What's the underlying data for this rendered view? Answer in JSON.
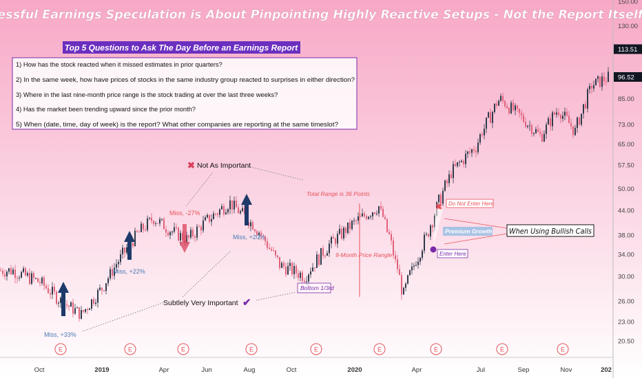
{
  "title": "Successful Earnings Speculation is About Pinpointing Highly Reactive Setups - Not the Report Itself!",
  "questions_box": {
    "heading": "Top 5 Questions to Ask The Day Before an Earnings Report",
    "items": [
      "1)  How has the stock reacted when it missed estimates in prior quarters?",
      "2)  In the same week, how have prices of stocks in the same industry group reacted to surprises in either direction?",
      "3)  Where in the last nine-month price range is the stock trading at over the last three weeks?",
      "4)  Has the market been trending upward since the prior month?",
      "5)   When (date, time, day of week) is the report? What other companies are reporting at the same timeslot?"
    ]
  },
  "annotations": {
    "not_important": "Not As Important",
    "subtly_important": "Subtlely Very Important",
    "miss_27": "Miss, -27%",
    "miss_20": "Miss, +20%",
    "miss_22": "Miss, +22%",
    "miss_33": "Miss, +33%",
    "total_range": "Total Range is 36 Points",
    "nine_month": "9-Month Price Rangle",
    "bottom": "Bottom 1/3rd",
    "do_not_enter": "Do Not Enter Here",
    "enter_here": "Enter Here",
    "premium_growth": "Premium Growth",
    "bullish_calls": "When Using Bullish Calls"
  },
  "colors": {
    "up": "#2f3a4a",
    "down": "#e0607a",
    "title": "#ffffff",
    "heading_bg": "#6b2fc0",
    "navy_arrow": "#1d3a6a",
    "red_text": "#e8505a",
    "blue_text": "#4a7ab5",
    "purple": "#7a2aa8"
  },
  "chart_data": {
    "type": "candlestick",
    "y_axis": {
      "ticks": [
        20.5,
        23.0,
        26.0,
        30.0,
        34.0,
        38.0,
        44.0,
        50.0,
        57.5,
        65.0,
        73.0,
        85.0,
        96.52,
        113.51,
        130.0,
        150.0
      ],
      "tick_labels": [
        "20.50",
        "23.00",
        "26.00",
        "30.00",
        "34.00",
        "38.00",
        "44.00",
        "50.00",
        "57.50",
        "65.00",
        "73.00",
        "85.00",
        "96.52",
        "113.51",
        "130.00",
        "150.00"
      ],
      "scale": "log",
      "highlighted": [
        "113.51",
        "96.52"
      ]
    },
    "x_axis": {
      "labels": [
        "Oct",
        "2019",
        "Apr",
        "Jun",
        "Aug",
        "Oct",
        "2020",
        "Apr",
        "Jul",
        "Sep",
        "Nov",
        "202"
      ],
      "bold_labels": [
        "2019",
        "2020",
        "202"
      ]
    },
    "earnings_markers_label": "E",
    "earnings_markers_count": 12,
    "price_path": [
      [
        "2018-09",
        31
      ],
      [
        "2018-10",
        29
      ],
      [
        "2018-11",
        26
      ],
      [
        "2018-12",
        24
      ],
      [
        "2019-01",
        28
      ],
      [
        "2019-02",
        33
      ],
      [
        "2019-03",
        38
      ],
      [
        "2019-04",
        42
      ],
      [
        "2019-05",
        39
      ],
      [
        "2019-06",
        37
      ],
      [
        "2019-07",
        41
      ],
      [
        "2019-08",
        46
      ],
      [
        "2019-09",
        40
      ],
      [
        "2019-10",
        32
      ],
      [
        "2019-11",
        30
      ],
      [
        "2019-12",
        36
      ],
      [
        "2020-01",
        41
      ],
      [
        "2020-02",
        45
      ],
      [
        "2020-03",
        27
      ],
      [
        "2020-04",
        38
      ],
      [
        "2020-05",
        55
      ],
      [
        "2020-06",
        64
      ],
      [
        "2020-07",
        85
      ],
      [
        "2020-08",
        75
      ],
      [
        "2020-09",
        68
      ],
      [
        "2020-10",
        80
      ],
      [
        "2020-11",
        70
      ],
      [
        "2020-12",
        92
      ],
      [
        "2021-01",
        96.52
      ]
    ]
  }
}
